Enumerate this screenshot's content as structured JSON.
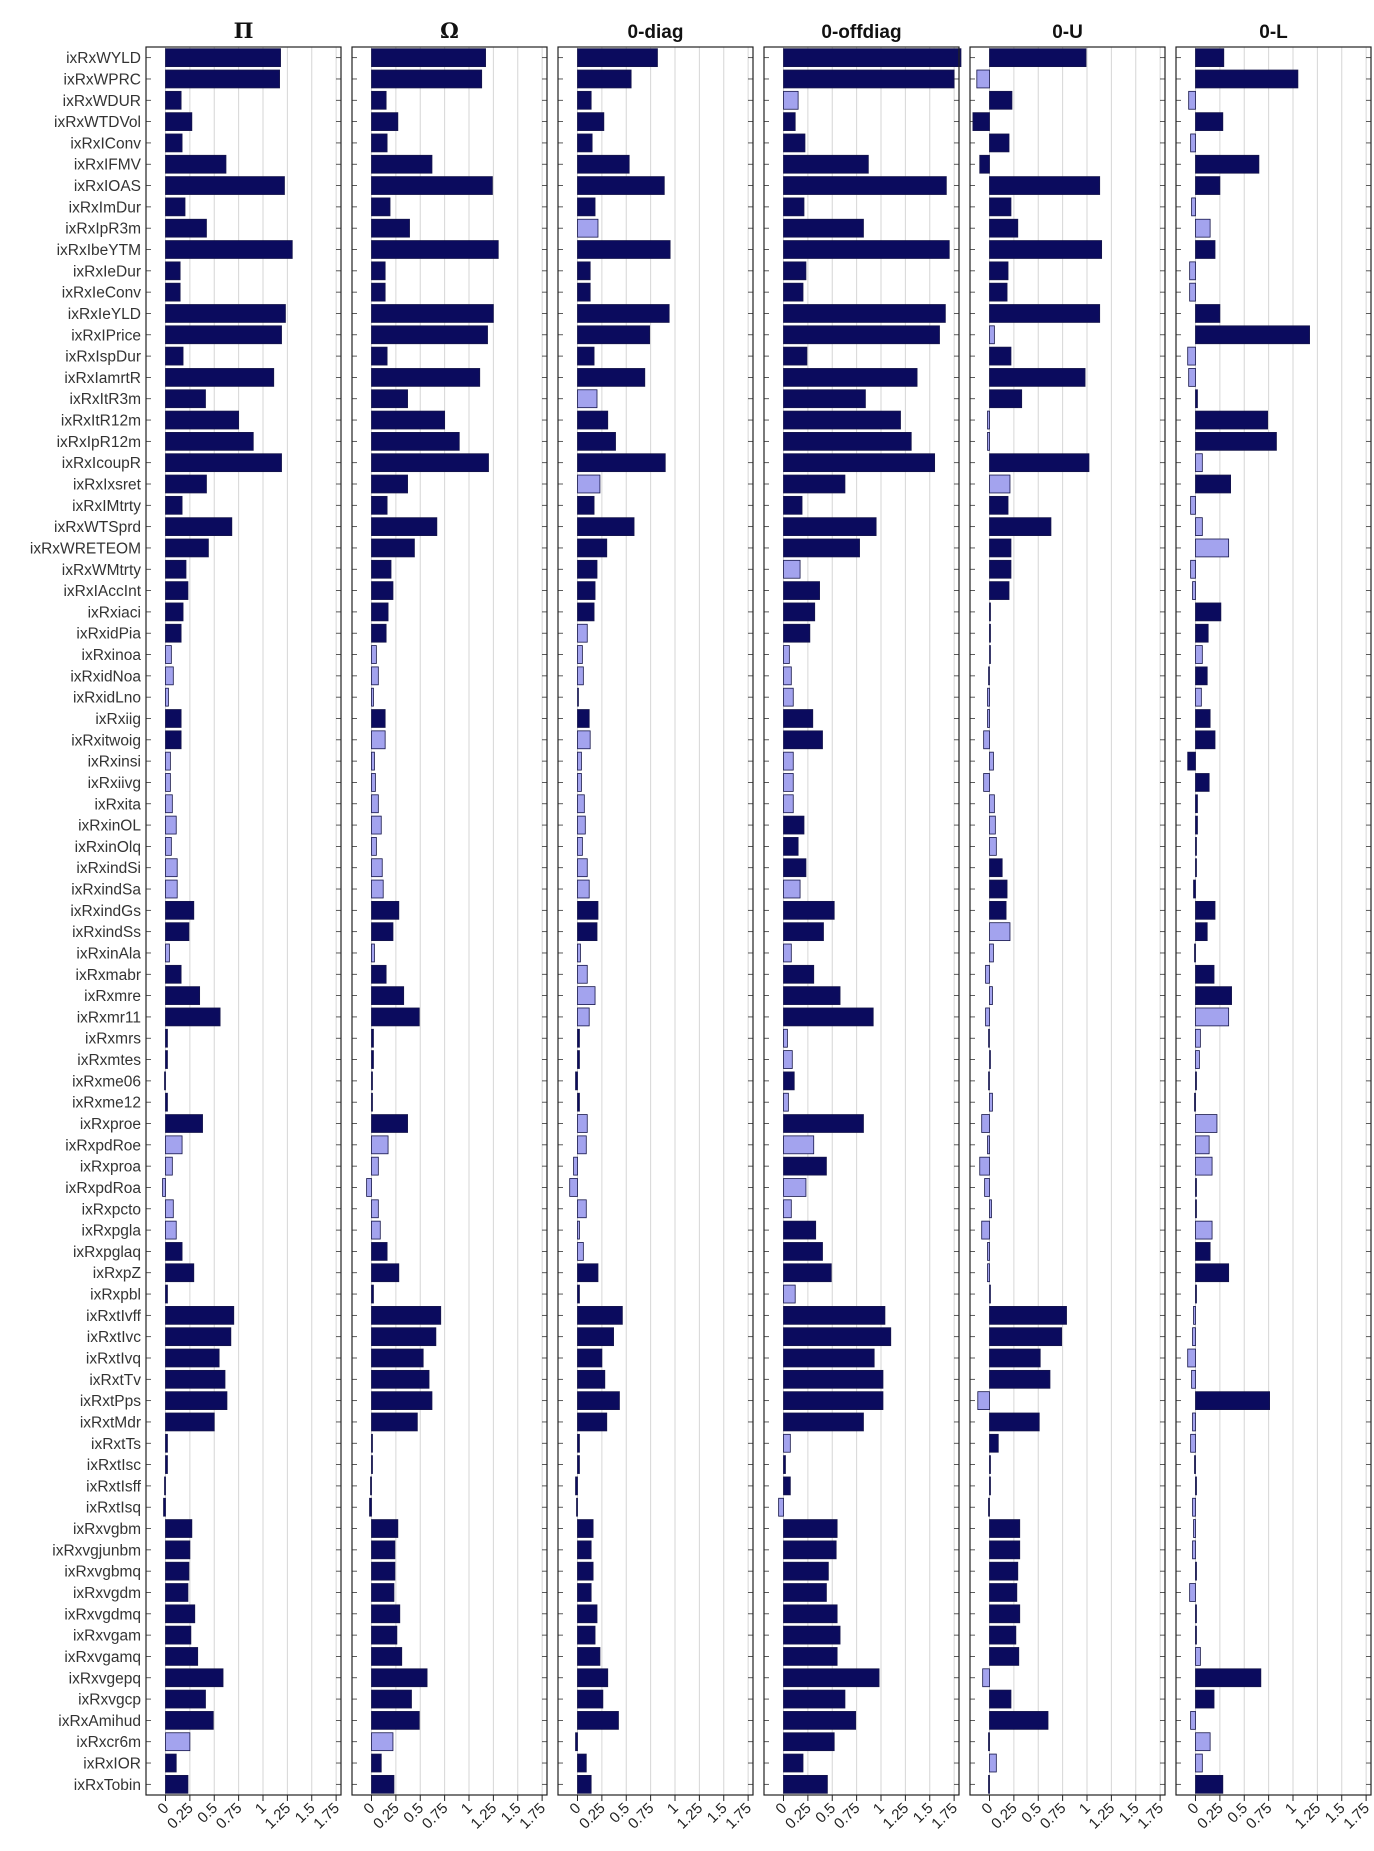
{
  "chart_data": {
    "type": "bar",
    "orientation": "horizontal",
    "grid": "vertical",
    "xlim": [
      -0.2,
      1.8
    ],
    "xticks": [
      "0",
      "0.25",
      "0.5",
      "0.75",
      "1",
      "1.25",
      "1.5",
      "1.75"
    ],
    "colors": {
      "significant": "#0b0b5e",
      "insignificant": "#a3a3ee",
      "edge": "#15154a",
      "grid": "#d6d6d6"
    },
    "categories": [
      "ixRxWYLD",
      "ixRxWPRC",
      "ixRxWDUR",
      "ixRxWTDVol",
      "ixRxIConv",
      "ixRxIFMV",
      "ixRxIOAS",
      "ixRxImDur",
      "ixRxIpR3m",
      "ixRxIbeYTM",
      "ixRxIeDur",
      "ixRxIeConv",
      "ixRxIeYLD",
      "ixRxIPrice",
      "ixRxIspDur",
      "ixRxIamrtR",
      "ixRxItR3m",
      "ixRxItR12m",
      "ixRxIpR12m",
      "ixRxIcoupR",
      "ixRxIxsret",
      "ixRxIMtrty",
      "ixRxWTSprd",
      "ixRxWRETEOM",
      "ixRxWMtrty",
      "ixRxIAccInt",
      "ixRxiaci",
      "ixRxidPia",
      "ixRxinoa",
      "ixRxidNoa",
      "ixRxidLno",
      "ixRxiig",
      "ixRxitwoig",
      "ixRxinsi",
      "ixRxiivg",
      "ixRxita",
      "ixRxinOL",
      "ixRxinOlq",
      "ixRxindSi",
      "ixRxindSa",
      "ixRxindGs",
      "ixRxindSs",
      "ixRxinAla",
      "ixRxmabr",
      "ixRxmre",
      "ixRxmr11",
      "ixRxmrs",
      "ixRxmtes",
      "ixRxme06",
      "ixRxme12",
      "ixRxproe",
      "ixRxpdRoe",
      "ixRxproa",
      "ixRxpdRoa",
      "ixRxpcto",
      "ixRxpgla",
      "ixRxpglaq",
      "ixRxpZ",
      "ixRxpbl",
      "ixRxtIvff",
      "ixRxtIvc",
      "ixRxtIvq",
      "ixRxtTv",
      "ixRxtPps",
      "ixRxtMdr",
      "ixRxtTs",
      "ixRxtIsc",
      "ixRxtIsff",
      "ixRxtIsq",
      "ixRxvgbm",
      "ixRxvgjunbm",
      "ixRxvgbmq",
      "ixRxvgdm",
      "ixRxvgdmq",
      "ixRxvgam",
      "ixRxvgamq",
      "ixRxvgepq",
      "ixRxvgcp",
      "ixRxAmihud",
      "ixRxcr6m",
      "ixRxIOR",
      "ixRxTobin"
    ],
    "series": [
      {
        "title": "Π",
        "values": [
          1.18,
          1.17,
          0.16,
          0.27,
          0.17,
          0.62,
          1.22,
          0.2,
          0.42,
          1.3,
          0.15,
          0.15,
          1.23,
          1.19,
          0.18,
          1.11,
          0.41,
          0.75,
          0.9,
          1.19,
          0.42,
          0.17,
          0.68,
          0.44,
          0.21,
          0.23,
          0.18,
          0.16,
          0.06,
          0.08,
          0.03,
          0.16,
          0.16,
          0.05,
          0.05,
          0.07,
          0.11,
          0.06,
          0.12,
          0.12,
          0.29,
          0.24,
          0.04,
          0.16,
          0.35,
          0.56,
          0.02,
          0.02,
          -0.01,
          0.02,
          0.38,
          0.17,
          0.07,
          -0.03,
          0.08,
          0.11,
          0.17,
          0.29,
          0.02,
          0.7,
          0.67,
          0.55,
          0.61,
          0.63,
          0.5,
          0.02,
          0.02,
          -0.01,
          -0.02,
          0.27,
          0.25,
          0.24,
          0.23,
          0.3,
          0.26,
          0.33,
          0.59,
          0.41,
          0.49,
          0.25,
          0.11,
          0.23
        ],
        "significant": [
          1,
          1,
          1,
          1,
          1,
          1,
          1,
          1,
          1,
          1,
          1,
          1,
          1,
          1,
          1,
          1,
          1,
          1,
          1,
          1,
          1,
          1,
          1,
          1,
          1,
          1,
          1,
          1,
          0,
          0,
          0,
          1,
          1,
          0,
          0,
          0,
          0,
          0,
          0,
          0,
          1,
          1,
          0,
          1,
          1,
          1,
          1,
          1,
          1,
          1,
          1,
          0,
          0,
          0,
          0,
          0,
          1,
          1,
          1,
          1,
          1,
          1,
          1,
          1,
          1,
          1,
          1,
          1,
          1,
          1,
          1,
          1,
          1,
          1,
          1,
          1,
          1,
          1,
          1,
          0,
          1,
          1
        ]
      },
      {
        "title": "Ω",
        "values": [
          1.17,
          1.13,
          0.15,
          0.27,
          0.16,
          0.62,
          1.24,
          0.19,
          0.39,
          1.3,
          0.14,
          0.14,
          1.25,
          1.19,
          0.16,
          1.11,
          0.37,
          0.75,
          0.9,
          1.2,
          0.37,
          0.16,
          0.67,
          0.44,
          0.2,
          0.22,
          0.17,
          0.15,
          0.05,
          0.07,
          0.02,
          0.14,
          0.14,
          0.03,
          0.04,
          0.07,
          0.1,
          0.05,
          0.11,
          0.12,
          0.28,
          0.22,
          0.03,
          0.15,
          0.33,
          0.49,
          0.02,
          0.02,
          0.01,
          0.01,
          0.37,
          0.17,
          0.07,
          -0.05,
          0.07,
          0.09,
          0.16,
          0.28,
          0.02,
          0.71,
          0.66,
          0.53,
          0.59,
          0.62,
          0.47,
          0.01,
          0.01,
          -0.01,
          -0.02,
          0.27,
          0.24,
          0.24,
          0.23,
          0.29,
          0.26,
          0.31,
          0.57,
          0.41,
          0.49,
          0.22,
          0.1,
          0.23
        ],
        "significant": [
          1,
          1,
          1,
          1,
          1,
          1,
          1,
          1,
          1,
          1,
          1,
          1,
          1,
          1,
          1,
          1,
          1,
          1,
          1,
          1,
          1,
          1,
          1,
          1,
          1,
          1,
          1,
          1,
          0,
          0,
          0,
          1,
          0,
          0,
          0,
          0,
          0,
          0,
          0,
          0,
          1,
          1,
          0,
          1,
          1,
          1,
          1,
          1,
          1,
          1,
          1,
          0,
          0,
          0,
          0,
          0,
          1,
          1,
          1,
          1,
          1,
          1,
          1,
          1,
          1,
          1,
          1,
          1,
          1,
          1,
          1,
          1,
          1,
          1,
          1,
          1,
          1,
          1,
          1,
          0,
          1,
          1
        ]
      },
      {
        "title": "0-diag",
        "values": [
          0.82,
          0.55,
          0.14,
          0.27,
          0.15,
          0.53,
          0.89,
          0.18,
          0.21,
          0.95,
          0.13,
          0.13,
          0.94,
          0.74,
          0.17,
          0.69,
          0.2,
          0.31,
          0.39,
          0.9,
          0.23,
          0.17,
          0.58,
          0.3,
          0.2,
          0.18,
          0.17,
          0.1,
          0.05,
          0.06,
          0.01,
          0.12,
          0.13,
          0.04,
          0.04,
          0.07,
          0.08,
          0.05,
          0.1,
          0.12,
          0.21,
          0.2,
          0.03,
          0.1,
          0.18,
          0.12,
          0.02,
          0.02,
          -0.02,
          0.02,
          0.1,
          0.09,
          -0.04,
          -0.08,
          0.09,
          0.02,
          0.06,
          0.21,
          0.02,
          0.46,
          0.37,
          0.25,
          0.28,
          0.43,
          0.3,
          0.02,
          0.02,
          -0.02,
          -0.01,
          0.16,
          0.14,
          0.16,
          0.14,
          0.2,
          0.18,
          0.23,
          0.31,
          0.26,
          0.42,
          -0.02,
          0.09,
          0.14
        ],
        "significant": [
          1,
          1,
          1,
          1,
          1,
          1,
          1,
          1,
          0,
          1,
          1,
          1,
          1,
          1,
          1,
          1,
          0,
          1,
          1,
          1,
          0,
          1,
          1,
          1,
          1,
          1,
          1,
          0,
          0,
          0,
          0,
          1,
          0,
          0,
          0,
          0,
          0,
          0,
          0,
          0,
          1,
          1,
          0,
          0,
          0,
          0,
          1,
          1,
          1,
          1,
          0,
          0,
          0,
          0,
          0,
          0,
          0,
          1,
          1,
          1,
          1,
          1,
          1,
          1,
          1,
          1,
          1,
          1,
          1,
          1,
          1,
          1,
          1,
          1,
          1,
          1,
          1,
          1,
          1,
          1,
          1,
          1
        ]
      },
      {
        "title": "0-offdiag",
        "values": [
          1.82,
          1.75,
          0.15,
          0.12,
          0.22,
          0.87,
          1.67,
          0.21,
          0.82,
          1.7,
          0.23,
          0.2,
          1.66,
          1.6,
          0.24,
          1.37,
          0.84,
          1.2,
          1.31,
          1.55,
          0.63,
          0.19,
          0.95,
          0.78,
          0.17,
          0.37,
          0.32,
          0.27,
          0.06,
          0.08,
          0.1,
          0.3,
          0.4,
          0.1,
          0.1,
          0.1,
          0.21,
          0.15,
          0.23,
          0.17,
          0.52,
          0.41,
          0.08,
          0.31,
          0.58,
          0.92,
          0.04,
          0.09,
          0.11,
          0.05,
          0.82,
          0.31,
          0.44,
          0.23,
          0.08,
          0.33,
          0.4,
          0.49,
          0.12,
          1.04,
          1.1,
          0.93,
          1.02,
          1.02,
          0.82,
          0.07,
          0.02,
          0.07,
          -0.05,
          0.55,
          0.54,
          0.46,
          0.44,
          0.55,
          0.58,
          0.55,
          0.98,
          0.63,
          0.74,
          0.52,
          0.2,
          0.45
        ],
        "significant": [
          1,
          1,
          0,
          1,
          1,
          1,
          1,
          1,
          1,
          1,
          1,
          1,
          1,
          1,
          1,
          1,
          1,
          1,
          1,
          1,
          1,
          1,
          1,
          1,
          0,
          1,
          1,
          1,
          0,
          0,
          0,
          1,
          1,
          0,
          0,
          0,
          1,
          1,
          1,
          0,
          1,
          1,
          0,
          1,
          1,
          1,
          0,
          0,
          1,
          0,
          1,
          0,
          1,
          0,
          0,
          1,
          1,
          1,
          0,
          1,
          1,
          1,
          1,
          1,
          1,
          0,
          1,
          1,
          0,
          1,
          1,
          1,
          1,
          1,
          1,
          1,
          1,
          1,
          1,
          1,
          1,
          1
        ]
      },
      {
        "title": "0-U",
        "values": [
          0.99,
          -0.13,
          0.23,
          -0.17,
          0.2,
          -0.1,
          1.13,
          0.22,
          0.29,
          1.15,
          0.19,
          0.18,
          1.13,
          0.05,
          0.22,
          0.98,
          0.33,
          -0.02,
          -0.02,
          1.02,
          0.21,
          0.19,
          0.63,
          0.22,
          0.22,
          0.2,
          0.01,
          0.01,
          0.01,
          -0.01,
          -0.02,
          -0.02,
          -0.06,
          0.04,
          -0.06,
          0.05,
          0.06,
          0.07,
          0.13,
          0.18,
          0.17,
          0.21,
          0.04,
          -0.04,
          0.03,
          -0.04,
          -0.01,
          0.01,
          -0.01,
          0.03,
          -0.08,
          -0.02,
          -0.1,
          -0.05,
          0.02,
          -0.08,
          -0.02,
          -0.02,
          0.01,
          0.79,
          0.74,
          0.52,
          0.62,
          -0.12,
          0.51,
          0.09,
          0.01,
          0.01,
          -0.01,
          0.31,
          0.31,
          0.29,
          0.28,
          0.31,
          0.27,
          0.3,
          -0.07,
          0.22,
          0.6,
          -0.01,
          0.07,
          -0.01
        ],
        "significant": [
          1,
          0,
          1,
          1,
          1,
          1,
          1,
          1,
          1,
          1,
          1,
          1,
          1,
          0,
          1,
          1,
          1,
          0,
          0,
          1,
          0,
          1,
          1,
          1,
          1,
          1,
          1,
          1,
          0,
          0,
          0,
          0,
          0,
          0,
          0,
          0,
          0,
          0,
          1,
          1,
          1,
          0,
          0,
          0,
          0,
          0,
          0,
          0,
          0,
          0,
          0,
          0,
          0,
          0,
          0,
          0,
          0,
          0,
          0,
          1,
          1,
          1,
          1,
          0,
          1,
          1,
          1,
          1,
          1,
          1,
          1,
          1,
          1,
          1,
          1,
          1,
          0,
          1,
          1,
          1,
          0,
          1
        ]
      },
      {
        "title": "0-L",
        "values": [
          0.29,
          1.05,
          -0.07,
          0.28,
          -0.05,
          0.65,
          0.25,
          -0.04,
          0.15,
          0.2,
          -0.06,
          -0.06,
          0.25,
          1.17,
          -0.08,
          -0.07,
          0.02,
          0.74,
          0.83,
          0.07,
          0.36,
          -0.05,
          0.07,
          0.34,
          -0.05,
          -0.03,
          0.26,
          0.13,
          0.07,
          0.12,
          0.06,
          0.15,
          0.2,
          -0.08,
          0.14,
          0.02,
          0.02,
          0.01,
          0.01,
          -0.02,
          0.2,
          0.12,
          -0.01,
          0.19,
          0.37,
          0.34,
          0.05,
          0.04,
          0.01,
          -0.01,
          0.22,
          0.14,
          0.17,
          0.01,
          0.01,
          0.17,
          0.15,
          0.34,
          0.01,
          -0.02,
          -0.03,
          -0.08,
          -0.04,
          0.76,
          -0.03,
          -0.05,
          -0.01,
          0.01,
          -0.03,
          -0.02,
          -0.03,
          0.01,
          -0.06,
          0.01,
          0.01,
          0.05,
          0.67,
          0.19,
          -0.05,
          0.15,
          0.07,
          0.28
        ],
        "significant": [
          1,
          1,
          0,
          1,
          0,
          1,
          1,
          0,
          0,
          1,
          0,
          0,
          1,
          1,
          0,
          0,
          1,
          1,
          1,
          0,
          1,
          0,
          0,
          0,
          0,
          0,
          1,
          1,
          0,
          1,
          0,
          1,
          1,
          1,
          1,
          1,
          1,
          1,
          1,
          1,
          1,
          1,
          1,
          1,
          1,
          0,
          0,
          0,
          1,
          1,
          0,
          0,
          0,
          1,
          1,
          0,
          1,
          1,
          1,
          0,
          0,
          0,
          0,
          1,
          0,
          0,
          1,
          1,
          0,
          0,
          0,
          1,
          0,
          1,
          1,
          0,
          1,
          1,
          0,
          0,
          0,
          1
        ]
      }
    ]
  }
}
